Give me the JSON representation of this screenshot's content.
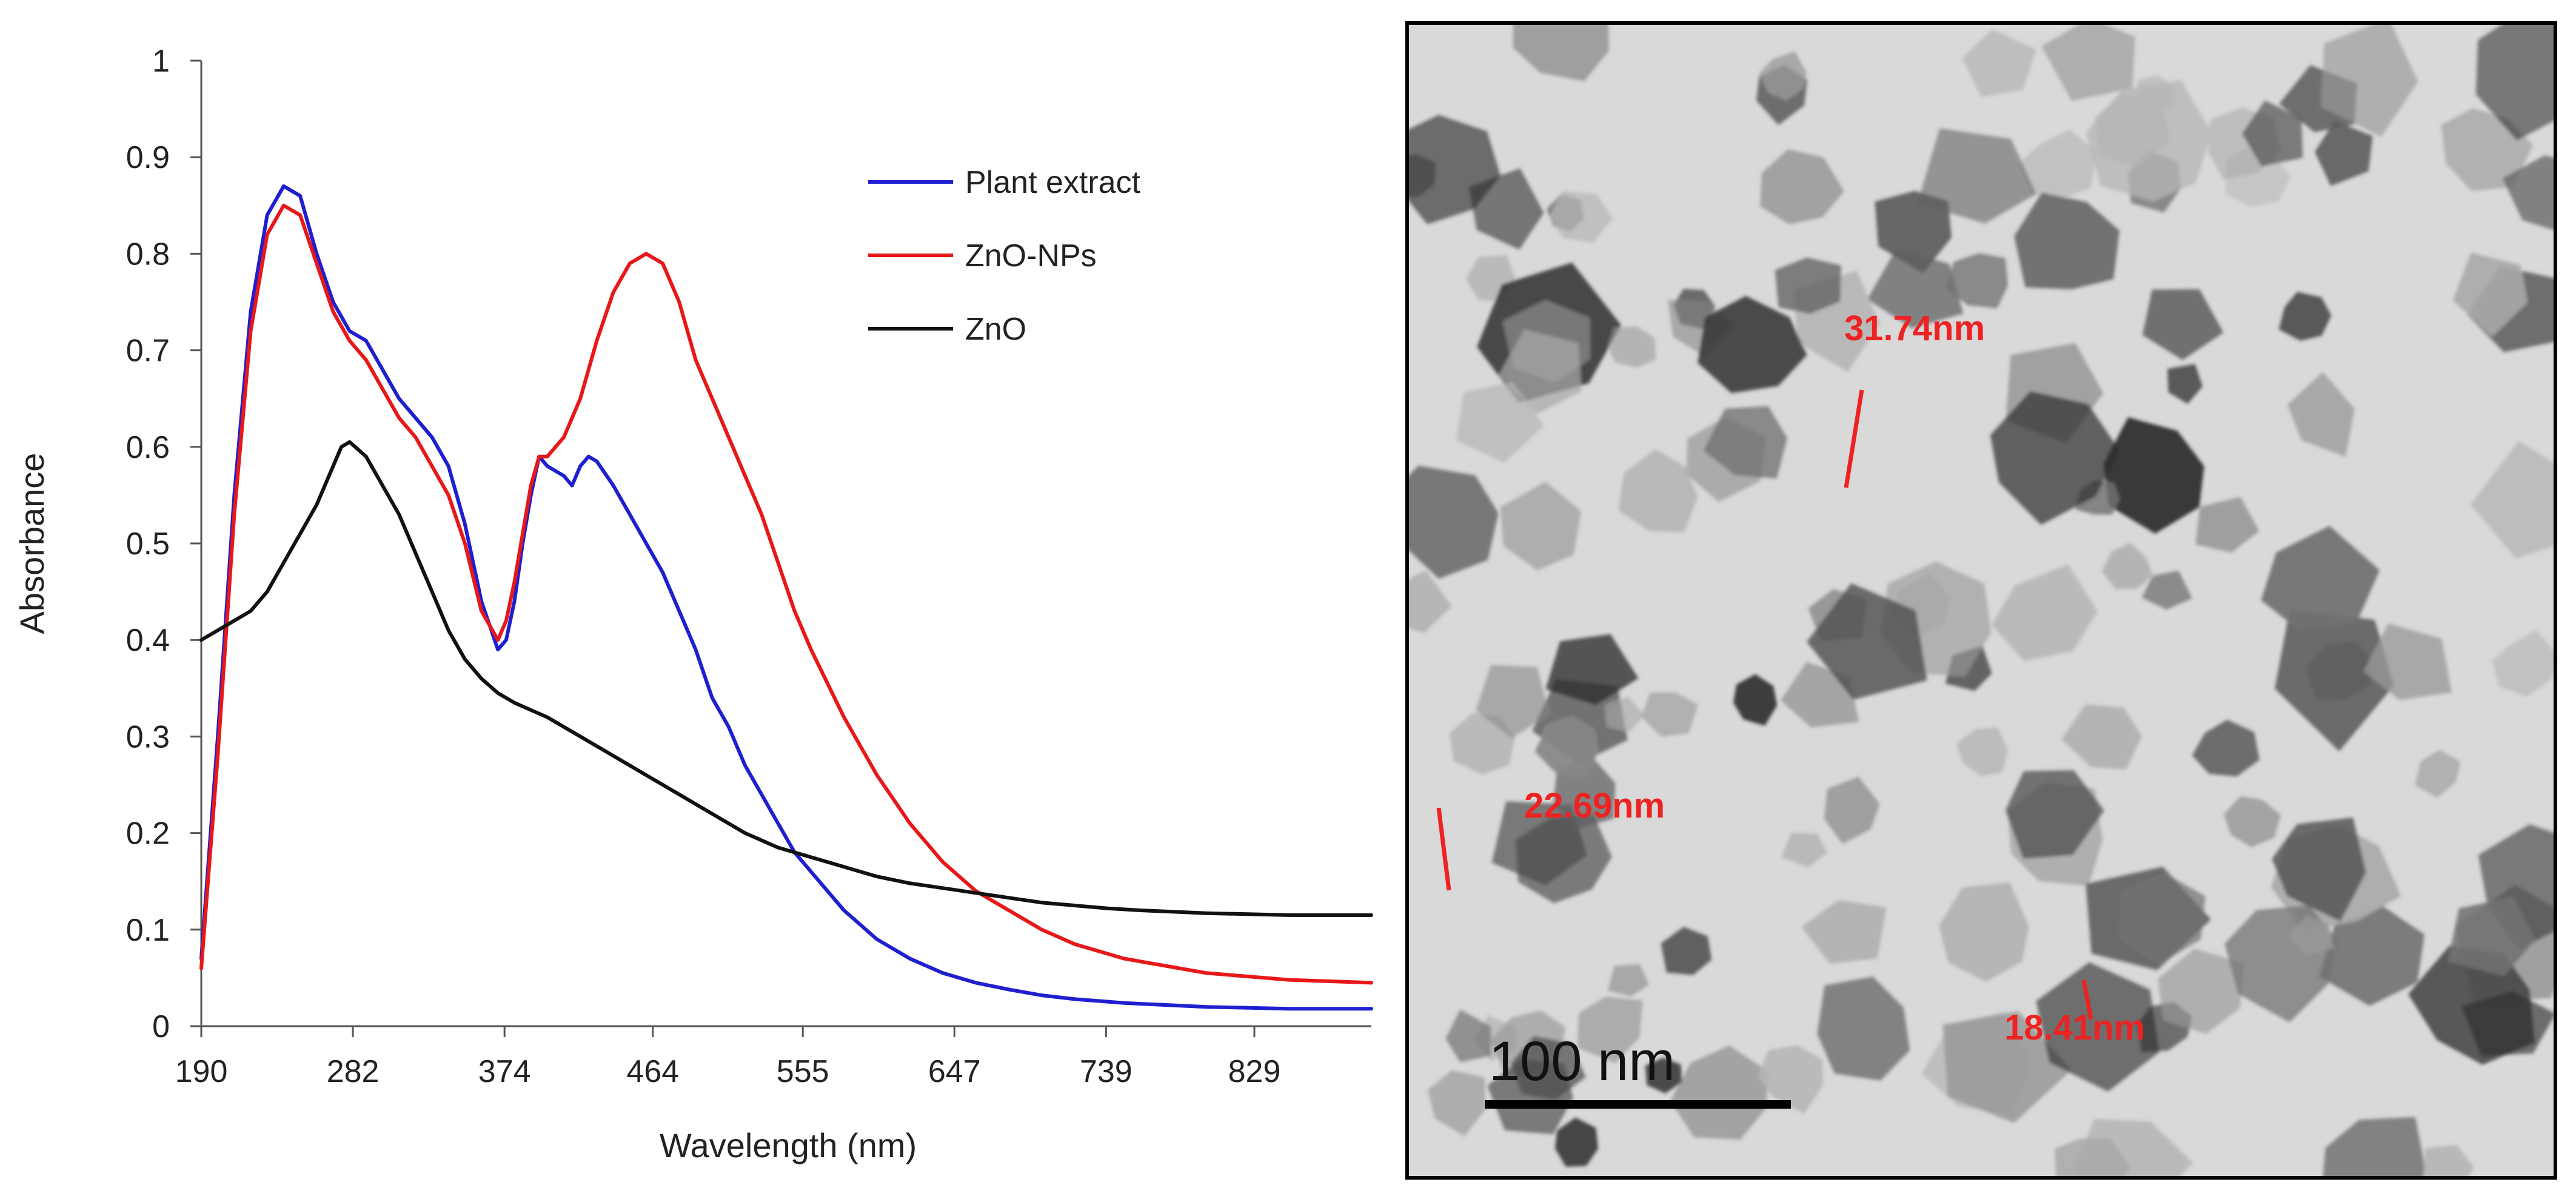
{
  "chart_data": {
    "type": "line",
    "xlabel": "Wavelength (nm)",
    "ylabel": "Absorbance",
    "x_tick_labels": [
      "190",
      "282",
      "374",
      "464",
      "555",
      "647",
      "739",
      "829"
    ],
    "xlim": [
      190,
      900
    ],
    "ylim": [
      0,
      1
    ],
    "y_tick_labels": [
      "0",
      "0.1",
      "0.2",
      "0.3",
      "0.4",
      "0.5",
      "0.6",
      "0.7",
      "0.8",
      "0.9",
      "1"
    ],
    "grid": false,
    "legend_position": "top-right",
    "series": [
      {
        "name": "Plant extract",
        "color": "#1f1fd0",
        "points": [
          [
            190,
            0.07
          ],
          [
            200,
            0.3
          ],
          [
            210,
            0.55
          ],
          [
            220,
            0.74
          ],
          [
            230,
            0.84
          ],
          [
            240,
            0.87
          ],
          [
            250,
            0.86
          ],
          [
            260,
            0.8
          ],
          [
            270,
            0.75
          ],
          [
            280,
            0.72
          ],
          [
            290,
            0.71
          ],
          [
            300,
            0.68
          ],
          [
            310,
            0.65
          ],
          [
            320,
            0.63
          ],
          [
            330,
            0.61
          ],
          [
            340,
            0.58
          ],
          [
            350,
            0.52
          ],
          [
            360,
            0.44
          ],
          [
            370,
            0.39
          ],
          [
            375,
            0.4
          ],
          [
            380,
            0.44
          ],
          [
            385,
            0.5
          ],
          [
            390,
            0.55
          ],
          [
            395,
            0.59
          ],
          [
            400,
            0.58
          ],
          [
            410,
            0.57
          ],
          [
            415,
            0.56
          ],
          [
            420,
            0.58
          ],
          [
            425,
            0.59
          ],
          [
            430,
            0.585
          ],
          [
            440,
            0.56
          ],
          [
            450,
            0.53
          ],
          [
            460,
            0.5
          ],
          [
            470,
            0.47
          ],
          [
            480,
            0.43
          ],
          [
            490,
            0.39
          ],
          [
            500,
            0.34
          ],
          [
            510,
            0.31
          ],
          [
            520,
            0.27
          ],
          [
            530,
            0.24
          ],
          [
            540,
            0.21
          ],
          [
            550,
            0.18
          ],
          [
            560,
            0.16
          ],
          [
            580,
            0.12
          ],
          [
            600,
            0.09
          ],
          [
            620,
            0.07
          ],
          [
            640,
            0.055
          ],
          [
            660,
            0.045
          ],
          [
            680,
            0.038
          ],
          [
            700,
            0.032
          ],
          [
            720,
            0.028
          ],
          [
            750,
            0.024
          ],
          [
            800,
            0.02
          ],
          [
            850,
            0.018
          ],
          [
            900,
            0.018
          ]
        ]
      },
      {
        "name": "ZnO-NPs",
        "color": "#e81818",
        "points": [
          [
            190,
            0.06
          ],
          [
            200,
            0.28
          ],
          [
            210,
            0.53
          ],
          [
            220,
            0.72
          ],
          [
            230,
            0.82
          ],
          [
            240,
            0.85
          ],
          [
            250,
            0.84
          ],
          [
            260,
            0.79
          ],
          [
            270,
            0.74
          ],
          [
            280,
            0.71
          ],
          [
            290,
            0.69
          ],
          [
            300,
            0.66
          ],
          [
            310,
            0.63
          ],
          [
            320,
            0.61
          ],
          [
            330,
            0.58
          ],
          [
            340,
            0.55
          ],
          [
            350,
            0.5
          ],
          [
            360,
            0.43
          ],
          [
            370,
            0.4
          ],
          [
            375,
            0.42
          ],
          [
            380,
            0.46
          ],
          [
            385,
            0.51
          ],
          [
            390,
            0.56
          ],
          [
            395,
            0.59
          ],
          [
            400,
            0.59
          ],
          [
            410,
            0.61
          ],
          [
            420,
            0.65
          ],
          [
            430,
            0.71
          ],
          [
            440,
            0.76
          ],
          [
            450,
            0.79
          ],
          [
            460,
            0.8
          ],
          [
            470,
            0.79
          ],
          [
            480,
            0.75
          ],
          [
            490,
            0.69
          ],
          [
            500,
            0.65
          ],
          [
            510,
            0.61
          ],
          [
            520,
            0.57
          ],
          [
            530,
            0.53
          ],
          [
            540,
            0.48
          ],
          [
            550,
            0.43
          ],
          [
            560,
            0.39
          ],
          [
            580,
            0.32
          ],
          [
            600,
            0.26
          ],
          [
            620,
            0.21
          ],
          [
            640,
            0.17
          ],
          [
            660,
            0.14
          ],
          [
            680,
            0.12
          ],
          [
            700,
            0.1
          ],
          [
            720,
            0.085
          ],
          [
            750,
            0.07
          ],
          [
            800,
            0.055
          ],
          [
            850,
            0.048
          ],
          [
            900,
            0.045
          ]
        ]
      },
      {
        "name": "ZnO",
        "color": "#111111",
        "points": [
          [
            190,
            0.4
          ],
          [
            200,
            0.41
          ],
          [
            210,
            0.42
          ],
          [
            220,
            0.43
          ],
          [
            230,
            0.45
          ],
          [
            240,
            0.48
          ],
          [
            250,
            0.51
          ],
          [
            260,
            0.54
          ],
          [
            270,
            0.58
          ],
          [
            275,
            0.6
          ],
          [
            280,
            0.605
          ],
          [
            290,
            0.59
          ],
          [
            300,
            0.56
          ],
          [
            310,
            0.53
          ],
          [
            320,
            0.49
          ],
          [
            330,
            0.45
          ],
          [
            340,
            0.41
          ],
          [
            350,
            0.38
          ],
          [
            360,
            0.36
          ],
          [
            370,
            0.345
          ],
          [
            380,
            0.335
          ],
          [
            400,
            0.32
          ],
          [
            420,
            0.3
          ],
          [
            440,
            0.28
          ],
          [
            460,
            0.26
          ],
          [
            480,
            0.24
          ],
          [
            500,
            0.22
          ],
          [
            520,
            0.2
          ],
          [
            540,
            0.185
          ],
          [
            560,
            0.175
          ],
          [
            580,
            0.165
          ],
          [
            600,
            0.155
          ],
          [
            620,
            0.148
          ],
          [
            640,
            0.143
          ],
          [
            660,
            0.138
          ],
          [
            680,
            0.133
          ],
          [
            700,
            0.128
          ],
          [
            720,
            0.125
          ],
          [
            740,
            0.122
          ],
          [
            760,
            0.12
          ],
          [
            800,
            0.117
          ],
          [
            850,
            0.115
          ],
          [
            900,
            0.115
          ]
        ]
      }
    ]
  },
  "tem_image": {
    "scale_bar_label": "100 nm",
    "measurements": [
      "31.74nm",
      "22.69nm",
      "18.41nm"
    ],
    "measurement_color": "#ee2222"
  }
}
